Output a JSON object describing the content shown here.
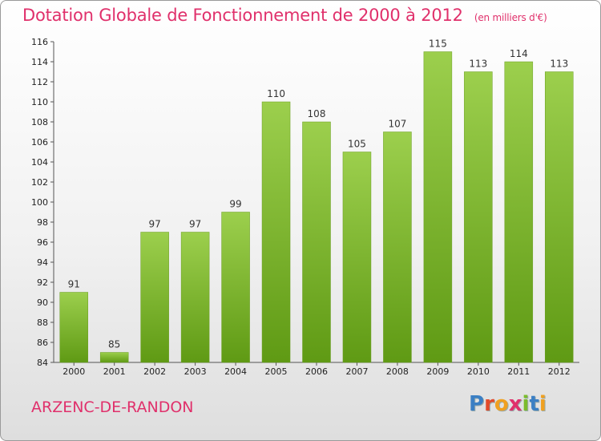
{
  "header": {
    "title": "Dotation Globale de Fonctionnement de 2000 à 2012",
    "unit": "(en milliers d'€)"
  },
  "footer": {
    "commune": "ARZENC-DE-RANDON",
    "logo": "Proxiti"
  },
  "colors": {
    "title": "#e0306b",
    "bar_top": "#9ccf4d",
    "bar_bottom": "#5f9a14",
    "logo_letters": [
      "#3b7fc4",
      "#e24a2a",
      "#f0a020",
      "#e0306b",
      "#7cbc2c",
      "#3b7fc4",
      "#f0a020"
    ]
  },
  "chart_data": {
    "type": "bar",
    "title": "Dotation Globale de Fonctionnement de 2000 à 2012",
    "subtitle": "(en milliers d'€)",
    "xlabel": "",
    "ylabel": "",
    "categories": [
      "2000",
      "2001",
      "2002",
      "2003",
      "2004",
      "2005",
      "2006",
      "2007",
      "2008",
      "2009",
      "2010",
      "2011",
      "2012"
    ],
    "values": [
      91,
      85,
      97,
      97,
      99,
      110,
      108,
      105,
      107,
      115,
      113,
      114,
      113
    ],
    "ylim": [
      84,
      116
    ],
    "yticks": [
      84,
      86,
      88,
      90,
      92,
      94,
      96,
      98,
      100,
      102,
      104,
      106,
      108,
      110,
      112,
      114,
      116
    ],
    "grid": false,
    "legend": "none"
  }
}
